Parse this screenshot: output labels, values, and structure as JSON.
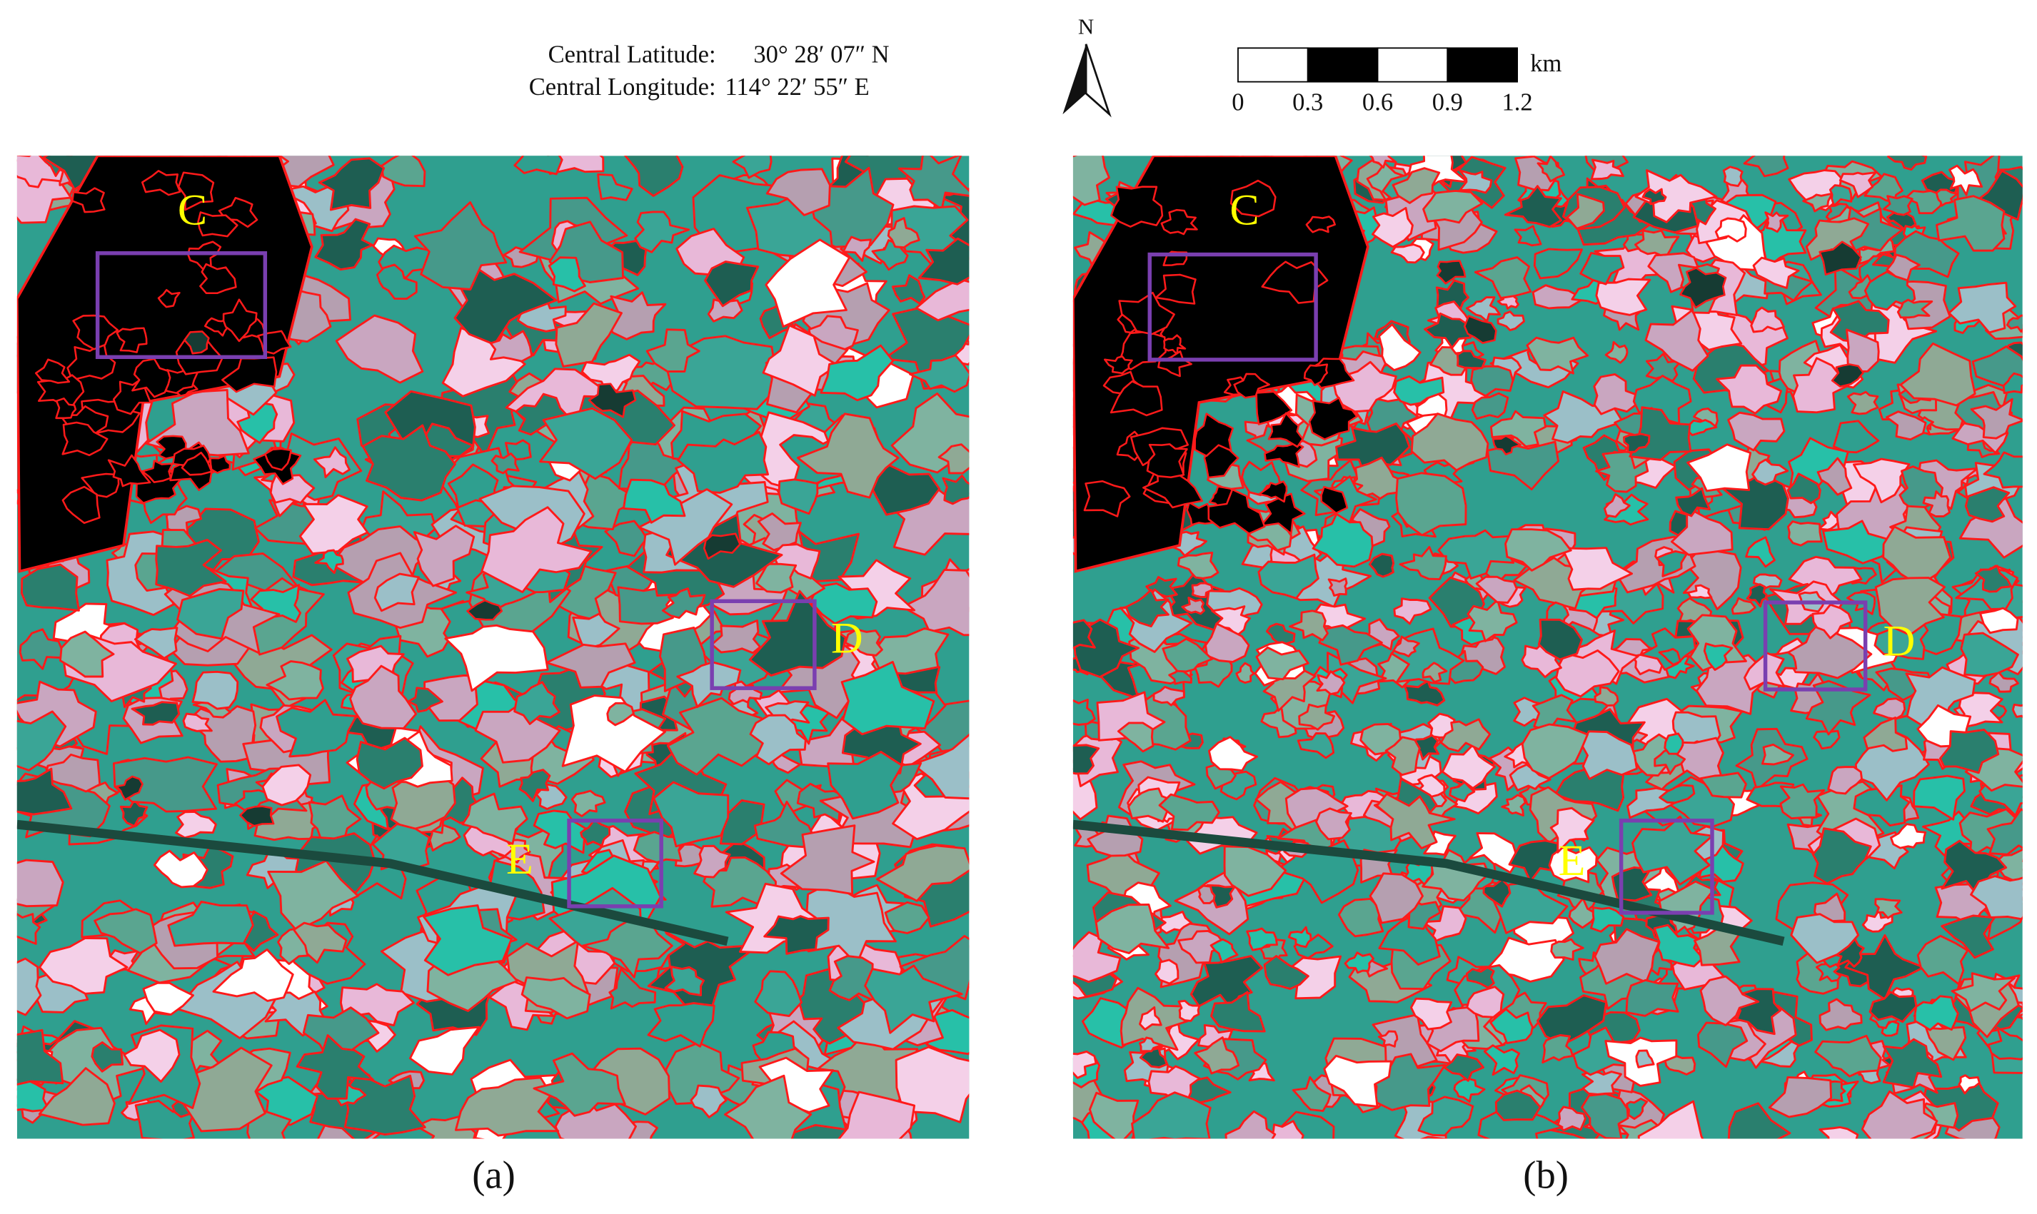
{
  "header": {
    "latitude_label": "Central Latitude:",
    "latitude_value": "30° 28′ 07″ N",
    "longitude_label": "Central Longitude:",
    "longitude_value": "114° 22′ 55″ E",
    "north": "N",
    "scale_unit": "km",
    "scale_ticks": [
      0,
      0.3,
      0.6,
      0.9,
      1.2
    ]
  },
  "panels": [
    {
      "label": "(a)",
      "regions": [
        "C",
        "D",
        "E"
      ]
    },
    {
      "label": "(b)",
      "regions": [
        "C",
        "D",
        "E"
      ]
    }
  ]
}
